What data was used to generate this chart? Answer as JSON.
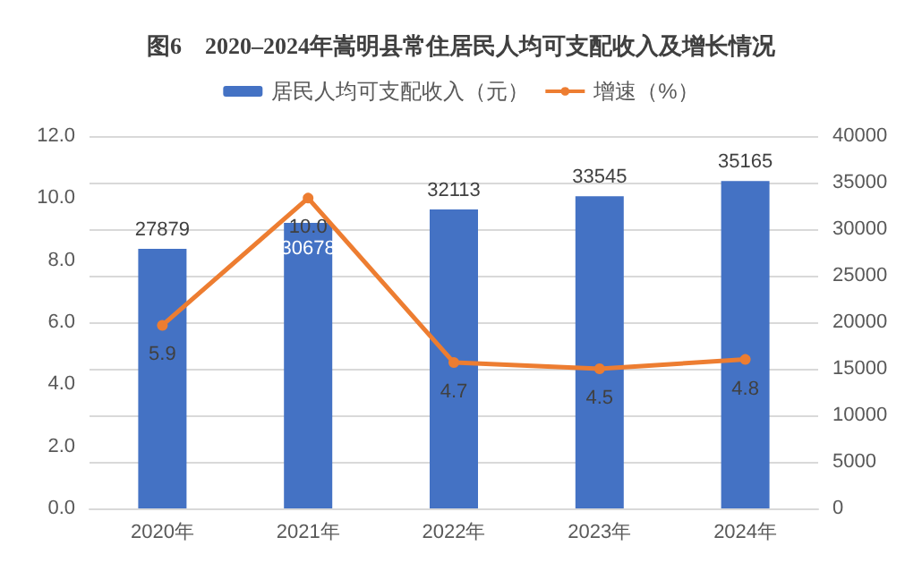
{
  "chart_data": {
    "type": "bar",
    "title": "图6　2020–2024年嵩明县常住居民人均可支配收入及增长情况",
    "categories": [
      "2020年",
      "2021年",
      "2022年",
      "2023年",
      "2024年"
    ],
    "series": [
      {
        "name": "居民人均可支配收入（元）",
        "axis": "y2",
        "color": "#4472c4",
        "values": [
          27879,
          30678,
          32113,
          33545,
          35165
        ],
        "value_labels": [
          "27879",
          "30678",
          "32113",
          "33545",
          "35165"
        ]
      },
      {
        "name": "增速（%）",
        "type": "line",
        "axis": "y",
        "color": "#ed7d31",
        "marker": "circle",
        "values": [
          5.9,
          10.0,
          4.7,
          4.5,
          4.8
        ],
        "value_labels": [
          "5.9",
          "10.0",
          "4.7",
          "4.5",
          "4.8"
        ]
      }
    ],
    "ylim": [
      0,
      12
    ],
    "yticks": [
      {
        "value": 0,
        "label": "0.0"
      },
      {
        "value": 2,
        "label": "2.0"
      },
      {
        "value": 4,
        "label": "4.0"
      },
      {
        "value": 6,
        "label": "6.0"
      },
      {
        "value": 8,
        "label": "8.0"
      },
      {
        "value": 10,
        "label": "10.0"
      },
      {
        "value": 12,
        "label": "12.0"
      }
    ],
    "y2lim": [
      0,
      40000
    ],
    "y2ticks": [
      0,
      5000,
      10000,
      15000,
      20000,
      25000,
      30000,
      35000,
      40000
    ],
    "grid": "y",
    "legend": "top"
  }
}
